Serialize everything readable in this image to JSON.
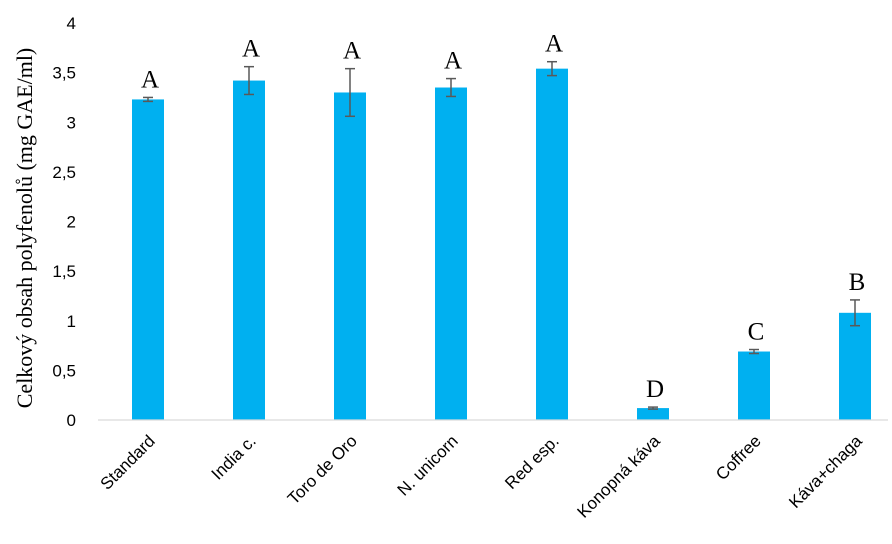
{
  "chart_data": {
    "type": "bar",
    "ylabel": "Celkový obsah polyfenolů (mg GAE/ml)",
    "xlabel": "",
    "ylim": [
      0,
      4
    ],
    "yticks": [
      "0",
      "0,5",
      "1",
      "1,5",
      "2",
      "2,5",
      "3",
      "3,5",
      "4"
    ],
    "grid": false,
    "bar_color": "#00B0F0",
    "error_color": "#595959",
    "categories": [
      "Standard",
      "India c.",
      "Toro de Oro",
      "N. unicorn",
      "Red esp.",
      "Konopná káva",
      "Coffree",
      "Káva+chaga"
    ],
    "values": [
      3.23,
      3.42,
      3.3,
      3.35,
      3.54,
      0.12,
      0.69,
      1.08
    ],
    "errors": [
      0.02,
      0.14,
      0.24,
      0.09,
      0.07,
      0.01,
      0.02,
      0.13
    ],
    "significance_letters": [
      "A",
      "A",
      "A",
      "A",
      "A",
      "D",
      "C",
      "B"
    ]
  }
}
